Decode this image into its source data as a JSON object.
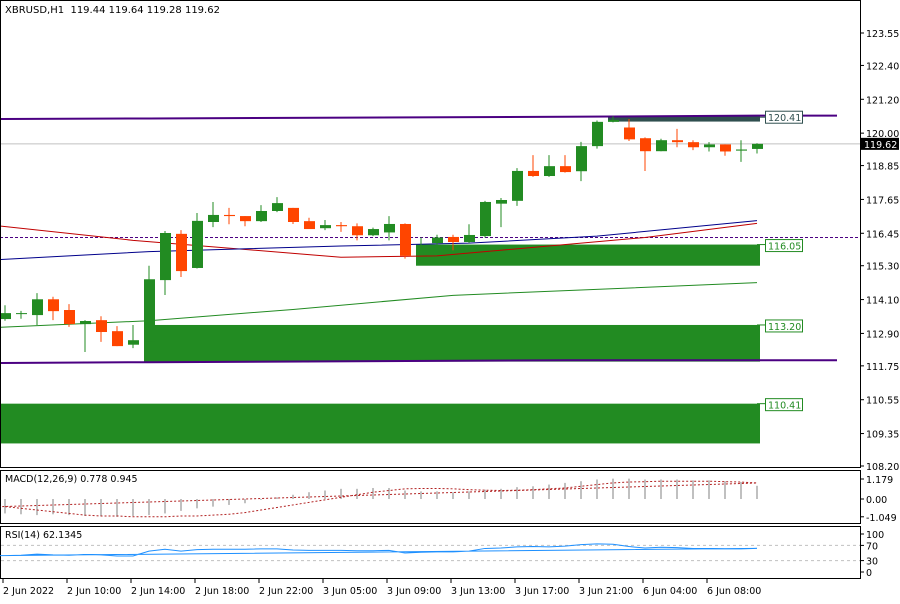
{
  "header": {
    "symbol": "XBRUSD,H1",
    "ohlc": "119.44 119.64 119.28 119.62"
  },
  "macd_label": {
    "name": "MACD(12,26,9)",
    "values": "0.778 0.945"
  },
  "rsi_label": {
    "name": "RSI(14)",
    "value": "62.1345"
  },
  "colors": {
    "bull": "#228B22",
    "bear": "#FF4500",
    "zone": "#228B22",
    "resistance": "#4B0082",
    "ma_red": "#C00000",
    "ma_blue": "#00008B",
    "ma_green": "#228B22",
    "rsi": "#1E90FF",
    "macd_hist": "#C0C0C0",
    "macd_signal": "#B22222"
  },
  "chart_data": {
    "type": "candlestick",
    "title": "XBRUSD,H1",
    "yticks": [
      "123.55",
      "122.40",
      "121.20",
      "120.00",
      "118.85",
      "117.65",
      "116.45",
      "115.30",
      "114.10",
      "112.90",
      "111.75",
      "110.55",
      "109.35",
      "108.20"
    ],
    "ylim": [
      108.2,
      123.55
    ],
    "current_price": "119.62",
    "xticks": [
      "2 Jun 2022",
      "2 Jun 10:00",
      "2 Jun 14:00",
      "2 Jun 18:00",
      "2 Jun 22:00",
      "3 Jun 05:00",
      "3 Jun 09:00",
      "3 Jun 13:00",
      "3 Jun 17:00",
      "3 Jun 21:00",
      "6 Jun 04:00",
      "6 Jun 08:00"
    ],
    "xtick_every": 4,
    "candles": [
      [
        113.41,
        113.9,
        113.35,
        113.62
      ],
      [
        113.6,
        113.7,
        113.42,
        113.62
      ],
      [
        113.55,
        114.33,
        113.2,
        114.11
      ],
      [
        114.11,
        114.2,
        113.37,
        113.69
      ],
      [
        113.73,
        113.94,
        113.13,
        113.23
      ],
      [
        113.23,
        113.37,
        112.24,
        113.34
      ],
      [
        113.37,
        113.51,
        112.6,
        112.95
      ],
      [
        112.98,
        113.16,
        112.45,
        112.45
      ],
      [
        112.5,
        113.2,
        112.38,
        112.66
      ],
      [
        112.6,
        115.3,
        112.6,
        114.82
      ],
      [
        114.79,
        116.53,
        114.26,
        116.46
      ],
      [
        116.43,
        116.56,
        114.9,
        115.11
      ],
      [
        115.22,
        117.17,
        115.2,
        116.89
      ],
      [
        116.85,
        117.56,
        116.67,
        117.1
      ],
      [
        117.1,
        117.35,
        116.77,
        117.06
      ],
      [
        117.06,
        117.06,
        116.7,
        116.88
      ],
      [
        116.88,
        117.45,
        116.85,
        117.24
      ],
      [
        117.24,
        117.73,
        117.2,
        117.52
      ],
      [
        117.35,
        117.35,
        116.78,
        116.85
      ],
      [
        116.88,
        117.0,
        116.6,
        116.6
      ],
      [
        116.63,
        116.92,
        116.56,
        116.74
      ],
      [
        116.74,
        116.85,
        116.5,
        116.7
      ],
      [
        116.7,
        116.8,
        116.2,
        116.38
      ],
      [
        116.38,
        116.65,
        116.35,
        116.6
      ],
      [
        116.48,
        117.06,
        116.2,
        116.78
      ],
      [
        116.78,
        116.8,
        115.55,
        115.65
      ],
      [
        115.9,
        116.3,
        115.7,
        116.0
      ],
      [
        116.1,
        116.4,
        115.9,
        116.3
      ],
      [
        116.32,
        116.4,
        115.85,
        116.14
      ],
      [
        116.14,
        116.77,
        116.1,
        116.39
      ],
      [
        116.35,
        117.6,
        116.3,
        117.56
      ],
      [
        117.5,
        117.7,
        116.67,
        117.63
      ],
      [
        117.6,
        118.76,
        117.42,
        118.66
      ],
      [
        118.66,
        119.22,
        118.45,
        118.48
      ],
      [
        118.48,
        119.22,
        118.45,
        118.83
      ],
      [
        118.83,
        119.22,
        118.6,
        118.62
      ],
      [
        118.65,
        119.69,
        118.3,
        119.54
      ],
      [
        119.54,
        120.45,
        119.45,
        120.4
      ],
      [
        120.4,
        120.6,
        120.38,
        120.47
      ],
      [
        120.2,
        120.5,
        119.72,
        119.78
      ],
      [
        119.82,
        119.85,
        118.66,
        119.36
      ],
      [
        119.36,
        119.8,
        119.36,
        119.75
      ],
      [
        119.75,
        120.15,
        119.5,
        119.68
      ],
      [
        119.68,
        119.75,
        119.4,
        119.5
      ],
      [
        119.5,
        119.68,
        119.35,
        119.6
      ],
      [
        119.6,
        119.6,
        119.2,
        119.35
      ],
      [
        119.38,
        119.75,
        118.98,
        119.42
      ],
      [
        119.44,
        119.64,
        119.28,
        119.62
      ]
    ],
    "zones": [
      {
        "label": "120.41",
        "top": 120.6,
        "bottom": 120.41,
        "from": 38,
        "color": "#2F4F4F"
      },
      {
        "label": "116.05",
        "top": 116.05,
        "bottom": 115.3,
        "from": 26,
        "color": "#228B22"
      },
      {
        "label": "113.20",
        "top": 113.2,
        "bottom": 111.9,
        "from": 9,
        "color": "#228B22"
      },
      {
        "label": "110.41",
        "top": 110.41,
        "bottom": 109.0,
        "from": -1,
        "color": "#228B22"
      }
    ],
    "resistance_upper": [
      [
        -1,
        120.5
      ],
      [
        9,
        120.52
      ],
      [
        35,
        120.58
      ],
      [
        47,
        120.62
      ],
      [
        52,
        120.62
      ]
    ],
    "support_lower": [
      [
        -1,
        111.85
      ],
      [
        9,
        111.88
      ],
      [
        35,
        111.95
      ],
      [
        52,
        111.95
      ]
    ],
    "dashed_level": 116.3,
    "ma_red": [
      [
        -1,
        116.75
      ],
      [
        8,
        116.2
      ],
      [
        21,
        115.6
      ],
      [
        27,
        115.65
      ],
      [
        40,
        116.3
      ],
      [
        47,
        116.8
      ]
    ],
    "ma_blue": [
      [
        -1,
        115.5
      ],
      [
        9,
        115.8
      ],
      [
        21,
        116.0
      ],
      [
        29,
        116.1
      ],
      [
        37,
        116.35
      ],
      [
        47,
        116.9
      ]
    ],
    "ma_green": [
      [
        -1,
        113.1
      ],
      [
        9,
        113.35
      ],
      [
        18,
        113.75
      ],
      [
        28,
        114.25
      ],
      [
        47,
        114.7
      ]
    ],
    "macd": {
      "yticks": [
        "1.179",
        "0.00",
        "-1.049"
      ],
      "ylim": [
        -1.049,
        1.179
      ],
      "hist": [
        -0.85,
        -0.9,
        -0.95,
        -0.9,
        -0.95,
        -1.0,
        -1.0,
        -1.05,
        -1.0,
        -0.95,
        -0.85,
        -0.7,
        -0.55,
        -0.45,
        -0.35,
        -0.25,
        -0.05,
        0.1,
        0.25,
        0.4,
        0.5,
        0.6,
        0.6,
        0.65,
        0.65,
        0.5,
        0.45,
        0.45,
        0.4,
        0.45,
        0.55,
        0.6,
        0.7,
        0.75,
        0.85,
        0.95,
        1.05,
        1.15,
        1.2,
        1.2,
        1.15,
        1.15,
        1.15,
        1.1,
        1.1,
        1.05,
        1.0,
        0.778
      ],
      "signal": [
        -0.45,
        -0.55,
        -0.65,
        -0.75,
        -0.85,
        -0.95,
        -1.0,
        -1.0,
        -1.05,
        -1.05,
        -1.05,
        -1.0,
        -1.0,
        -0.95,
        -0.9,
        -0.8,
        -0.65,
        -0.5,
        -0.35,
        -0.2,
        -0.05,
        0.1,
        0.25,
        0.4,
        0.5,
        0.6,
        0.62,
        0.62,
        0.6,
        0.55,
        0.52,
        0.5,
        0.52,
        0.55,
        0.6,
        0.65,
        0.75,
        0.85,
        0.95,
        1.0,
        1.02,
        1.05,
        1.05,
        1.05,
        1.05,
        1.02,
        1.0,
        0.945
      ]
    },
    "rsi": {
      "yticks": [
        "100",
        "70",
        "30",
        "0"
      ],
      "levels": [
        70,
        30
      ],
      "values": [
        43,
        44,
        47,
        45,
        44,
        46,
        45,
        42,
        42,
        55,
        60,
        55,
        59,
        60,
        60,
        60,
        61,
        61,
        58,
        57,
        57,
        57,
        56,
        56,
        57,
        50,
        52,
        53,
        53,
        55,
        62,
        63,
        66,
        67,
        66,
        68,
        72,
        74,
        73,
        67,
        63,
        65,
        64,
        62,
        62,
        61,
        61,
        62.13
      ]
    }
  }
}
